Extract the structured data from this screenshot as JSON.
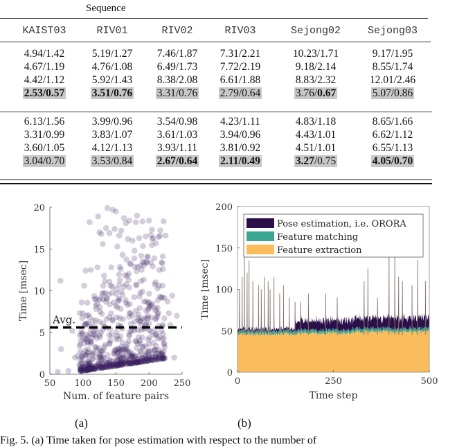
{
  "table": {
    "group_label": "Sequence",
    "columns": [
      "KAIST03",
      "RIV01",
      "RIV02",
      "RIV03",
      "Sejong02",
      "Sejong03"
    ],
    "group1_rows": [
      [
        "4.94/1.42",
        "5.19/1.27",
        "7.46/1.87",
        "7.31/2.21",
        "10.23/1.71",
        "9.17/1.95"
      ],
      [
        "4.67/1.19",
        "4.76/1.08",
        "6.49/1.73",
        "7.72/2.19",
        "9.18/2.14",
        "8.55/1.74"
      ],
      [
        "4.42/1.12",
        "5.92/1.43",
        "8.38/2.08",
        "6.61/1.88",
        "8.83/2.32",
        "12.01/2.46"
      ],
      [
        "2.53/0.57",
        "3.51/0.76",
        "3.31/0.76",
        "2.79/0.64",
        "3.76/0.67",
        "5.07/0.86"
      ]
    ],
    "group1_highlight_bold": [
      [
        "both",
        "both",
        "none",
        "none",
        "second",
        "none"
      ]
    ],
    "group2_rows": [
      [
        "6.13/1.56",
        "3.99/0.96",
        "3.54/0.98",
        "4.23/1.11",
        "4.83/1.18",
        "8.65/1.66"
      ],
      [
        "3.31/0.99",
        "3.83/1.07",
        "3.61/1.03",
        "3.94/0.96",
        "4.43/1.01",
        "6.62/1.12"
      ],
      [
        "3.60/1.05",
        "4.12/1.13",
        "3.93/1.11",
        "3.81/0.92",
        "4.51/1.01",
        "6.55/1.13"
      ],
      [
        "3.04/0.70",
        "3.53/0.84",
        "2.67/0.64",
        "2.11/0.49",
        "3.27/0.75",
        "4.05/0.70"
      ]
    ],
    "group2_highlight_bold": [
      [
        "none",
        "none",
        "both",
        "both",
        "first",
        "both"
      ]
    ]
  },
  "subfig_labels": [
    "(a)",
    "(b)"
  ],
  "caption": "Fig. 5. (a) Time taken for pose estimation with respect to the number of",
  "chart_data": [
    {
      "type": "scatter",
      "title": "",
      "xlabel": "Num. of feature pairs",
      "ylabel": "Time [msec]",
      "xlim": [
        50,
        250
      ],
      "ylim": [
        0,
        20
      ],
      "xticks": [
        50,
        100,
        150,
        200,
        250
      ],
      "yticks": [
        0,
        5,
        10,
        15,
        20
      ],
      "marker_color": "#3b1f5e",
      "annotation": {
        "text": "Avg.",
        "avg_line_y": 5.6,
        "style": "dashed"
      },
      "points": [
        [
          62,
          0.3
        ],
        [
          66,
          11.2
        ],
        [
          67,
          3.0
        ],
        [
          78,
          0.4
        ],
        [
          84,
          5.2
        ],
        [
          88,
          2.0
        ],
        [
          92,
          2.2
        ],
        [
          95,
          3.4
        ],
        [
          97,
          0.6
        ],
        [
          98,
          8.6
        ],
        [
          100,
          7.3
        ],
        [
          102,
          10.6
        ],
        [
          104,
          12.4
        ],
        [
          105,
          4.3
        ],
        [
          108,
          3.0
        ],
        [
          110,
          18.2
        ],
        [
          112,
          12.5
        ],
        [
          115,
          2.6
        ],
        [
          118,
          9.0
        ],
        [
          120,
          7.8
        ],
        [
          122,
          12.8
        ],
        [
          123,
          18.9
        ],
        [
          125,
          17.0
        ],
        [
          128,
          16.8
        ],
        [
          130,
          15.6
        ],
        [
          132,
          11.8
        ],
        [
          135,
          17.5
        ],
        [
          137,
          19.9
        ],
        [
          140,
          16.9
        ],
        [
          143,
          12.8
        ],
        [
          145,
          19.7
        ],
        [
          148,
          17.4
        ],
        [
          150,
          19.5
        ],
        [
          152,
          15.3
        ],
        [
          155,
          16.6
        ],
        [
          158,
          17.2
        ],
        [
          160,
          14.3
        ],
        [
          162,
          18.7
        ],
        [
          165,
          18.1
        ],
        [
          168,
          16.2
        ],
        [
          170,
          18.4
        ],
        [
          172,
          13.2
        ],
        [
          175,
          16.0
        ],
        [
          178,
          14.8
        ],
        [
          180,
          18.2
        ],
        [
          182,
          19.0
        ],
        [
          185,
          16.3
        ],
        [
          188,
          14.2
        ],
        [
          190,
          18.3
        ],
        [
          192,
          13.0
        ],
        [
          195,
          16.5
        ],
        [
          198,
          14.1
        ],
        [
          200,
          18.4
        ],
        [
          203,
          13.4
        ],
        [
          205,
          16.2
        ],
        [
          208,
          13.9
        ],
        [
          210,
          11.0
        ],
        [
          215,
          10.6
        ],
        [
          220,
          9.2
        ],
        [
          225,
          16.6
        ],
        [
          228,
          8.7
        ],
        [
          230,
          7.3
        ],
        [
          232,
          5.9
        ],
        [
          235,
          9.4
        ],
        [
          238,
          2.0
        ],
        [
          242,
          7.0
        ],
        [
          118,
          1.0
        ],
        [
          125,
          1.2
        ],
        [
          130,
          0.9
        ],
        [
          135,
          1.4
        ],
        [
          140,
          1.1
        ],
        [
          145,
          1.6
        ],
        [
          150,
          1.3
        ],
        [
          155,
          1.8
        ],
        [
          160,
          1.5
        ],
        [
          165,
          1.9
        ],
        [
          170,
          1.7
        ],
        [
          175,
          2.1
        ],
        [
          180,
          1.9
        ],
        [
          185,
          2.2
        ],
        [
          190,
          2.0
        ],
        [
          195,
          2.3
        ],
        [
          200,
          2.1
        ],
        [
          205,
          2.4
        ],
        [
          210,
          2.2
        ],
        [
          215,
          2.5
        ],
        [
          220,
          2.6
        ],
        [
          140,
          6.8
        ],
        [
          150,
          8.2
        ],
        [
          160,
          9.5
        ],
        [
          170,
          10.4
        ],
        [
          180,
          7.6
        ],
        [
          190,
          9.9
        ],
        [
          200,
          6.1
        ],
        [
          150,
          4.2
        ],
        [
          160,
          3.8
        ],
        [
          170,
          4.6
        ],
        [
          180,
          3.9
        ],
        [
          190,
          4.4
        ],
        [
          200,
          3.6
        ],
        [
          210,
          4.8
        ]
      ],
      "n_points_approx": 1000
    },
    {
      "type": "area",
      "stacked": true,
      "title": "",
      "xlabel": "Time step",
      "ylabel": "Time [msec]",
      "xlim": [
        0,
        500
      ],
      "ylim": [
        0,
        200
      ],
      "xticks": [
        0,
        250,
        500
      ],
      "yticks": [
        0,
        50,
        100,
        150,
        200
      ],
      "legend": "top-left",
      "series": [
        {
          "name": "Feature extraction",
          "color": "#fbbd5b",
          "mean_by_segment": {
            "0-150": 46,
            "150-300": 47,
            "300-500": 49
          }
        },
        {
          "name": "Feature matching",
          "color": "#3aa590",
          "mean_by_segment": {
            "0-150": 3,
            "150-300": 3,
            "300-500": 3
          }
        },
        {
          "name": "Pose estimation, i.e. ORORA",
          "color": "#2a0f4a",
          "mean_by_segment": {
            "0-150": 2,
            "150-300": 10,
            "300-500": 11
          }
        }
      ],
      "spikes": [
        [
          5,
          100
        ],
        [
          12,
          115
        ],
        [
          18,
          140
        ],
        [
          25,
          120
        ],
        [
          30,
          135
        ],
        [
          40,
          110
        ],
        [
          55,
          105
        ],
        [
          62,
          100
        ],
        [
          70,
          115
        ],
        [
          80,
          110
        ],
        [
          85,
          100
        ],
        [
          95,
          115
        ],
        [
          110,
          95
        ],
        [
          120,
          105
        ],
        [
          135,
          90
        ],
        [
          150,
          85
        ],
        [
          165,
          85
        ],
        [
          185,
          95
        ],
        [
          230,
          95
        ],
        [
          260,
          90
        ],
        [
          330,
          110
        ],
        [
          340,
          125
        ],
        [
          365,
          90
        ],
        [
          395,
          140
        ],
        [
          410,
          140
        ],
        [
          420,
          115
        ],
        [
          430,
          110
        ],
        [
          455,
          105
        ],
        [
          470,
          135
        ],
        [
          490,
          110
        ]
      ],
      "total_smoothed": [
        [
          0,
          52
        ],
        [
          150,
          55
        ],
        [
          200,
          62
        ],
        [
          300,
          62
        ],
        [
          400,
          63
        ],
        [
          470,
          65
        ],
        [
          500,
          70
        ]
      ]
    }
  ]
}
